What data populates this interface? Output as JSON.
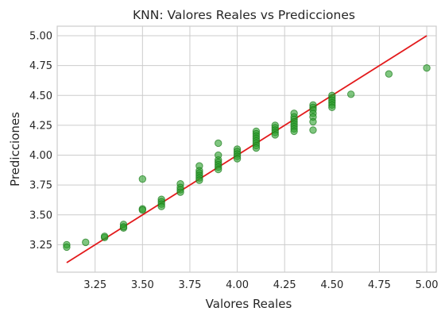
{
  "chart_data": {
    "type": "scatter",
    "title": "KNN: Valores Reales vs Predicciones",
    "xlabel": "Valores Reales",
    "ylabel": "Predicciones",
    "xlim": [
      3.05,
      5.05
    ],
    "ylim": [
      3.02,
      5.08
    ],
    "x_ticks": [
      3.25,
      3.5,
      3.75,
      4.0,
      4.25,
      4.5,
      4.75,
      5.0
    ],
    "x_tick_labels": [
      "3.25",
      "3.50",
      "3.75",
      "4.00",
      "4.25",
      "4.50",
      "4.75",
      "5.00"
    ],
    "y_ticks": [
      3.25,
      3.5,
      3.75,
      4.0,
      4.25,
      4.5,
      4.75,
      5.0
    ],
    "y_tick_labels": [
      "3.25",
      "3.50",
      "3.75",
      "4.00",
      "4.25",
      "4.50",
      "4.75",
      "5.00"
    ],
    "grid": true,
    "point_color": "#2ca02c",
    "point_edge_color": "#1a7a1a",
    "reference_line": {
      "from": [
        3.1,
        3.1
      ],
      "to": [
        5.0,
        5.0
      ],
      "color": "#e31a1c"
    },
    "points": [
      [
        3.1,
        3.25
      ],
      [
        3.1,
        3.23
      ],
      [
        3.2,
        3.27
      ],
      [
        3.3,
        3.31
      ],
      [
        3.3,
        3.32
      ],
      [
        3.4,
        3.42
      ],
      [
        3.4,
        3.39
      ],
      [
        3.4,
        3.4
      ],
      [
        3.5,
        3.8
      ],
      [
        3.5,
        3.55
      ],
      [
        3.5,
        3.54
      ],
      [
        3.6,
        3.63
      ],
      [
        3.6,
        3.61
      ],
      [
        3.6,
        3.59
      ],
      [
        3.6,
        3.57
      ],
      [
        3.7,
        3.76
      ],
      [
        3.7,
        3.73
      ],
      [
        3.7,
        3.71
      ],
      [
        3.7,
        3.69
      ],
      [
        3.8,
        3.91
      ],
      [
        3.8,
        3.87
      ],
      [
        3.8,
        3.85
      ],
      [
        3.8,
        3.83
      ],
      [
        3.8,
        3.81
      ],
      [
        3.8,
        3.79
      ],
      [
        3.9,
        4.1
      ],
      [
        3.9,
        4.0
      ],
      [
        3.9,
        3.96
      ],
      [
        3.9,
        3.94
      ],
      [
        3.9,
        3.92
      ],
      [
        3.9,
        3.9
      ],
      [
        3.9,
        3.88
      ],
      [
        4.0,
        4.05
      ],
      [
        4.0,
        4.03
      ],
      [
        4.0,
        4.01
      ],
      [
        4.0,
        3.99
      ],
      [
        4.0,
        3.97
      ],
      [
        4.1,
        4.2
      ],
      [
        4.1,
        4.18
      ],
      [
        4.1,
        4.16
      ],
      [
        4.1,
        4.14
      ],
      [
        4.1,
        4.12
      ],
      [
        4.1,
        4.1
      ],
      [
        4.1,
        4.08
      ],
      [
        4.1,
        4.06
      ],
      [
        4.2,
        4.25
      ],
      [
        4.2,
        4.23
      ],
      [
        4.2,
        4.21
      ],
      [
        4.2,
        4.19
      ],
      [
        4.2,
        4.17
      ],
      [
        4.3,
        4.35
      ],
      [
        4.3,
        4.32
      ],
      [
        4.3,
        4.3
      ],
      [
        4.3,
        4.28
      ],
      [
        4.3,
        4.26
      ],
      [
        4.3,
        4.24
      ],
      [
        4.3,
        4.22
      ],
      [
        4.3,
        4.2
      ],
      [
        4.4,
        4.42
      ],
      [
        4.4,
        4.4
      ],
      [
        4.4,
        4.38
      ],
      [
        4.4,
        4.35
      ],
      [
        4.4,
        4.32
      ],
      [
        4.4,
        4.28
      ],
      [
        4.4,
        4.21
      ],
      [
        4.5,
        4.5
      ],
      [
        4.5,
        4.48
      ],
      [
        4.5,
        4.46
      ],
      [
        4.5,
        4.44
      ],
      [
        4.5,
        4.42
      ],
      [
        4.5,
        4.4
      ],
      [
        4.6,
        4.51
      ],
      [
        4.8,
        4.68
      ],
      [
        5.0,
        4.73
      ]
    ]
  }
}
